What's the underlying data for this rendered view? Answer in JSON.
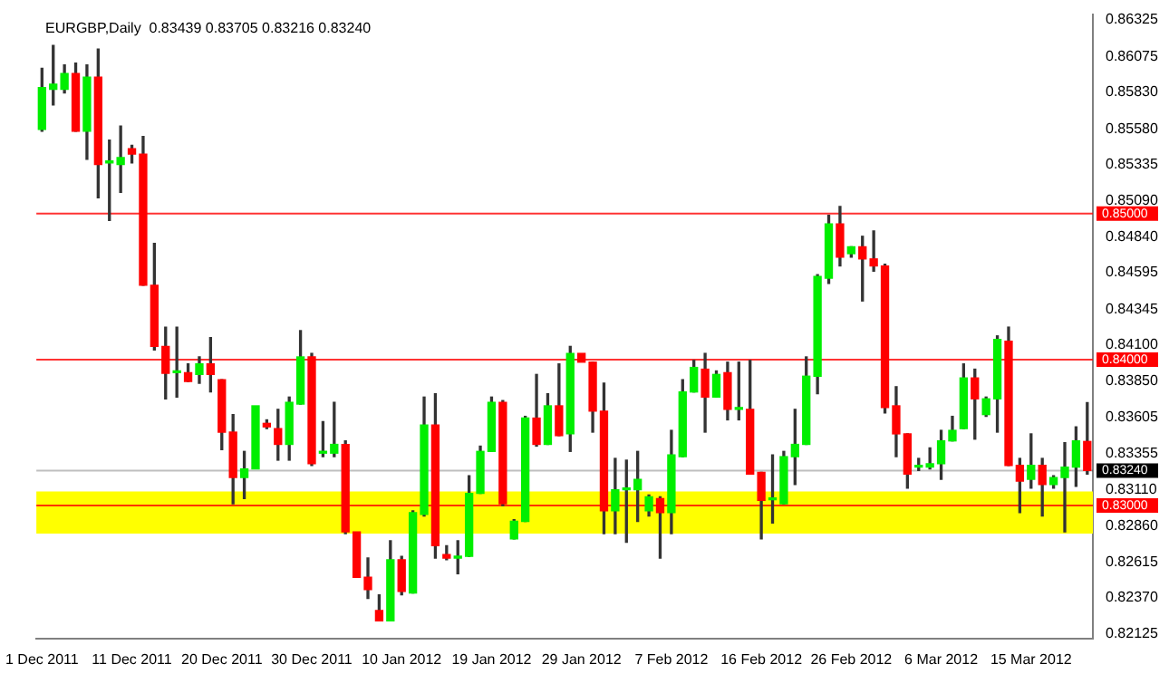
{
  "chart_data": {
    "type": "candlestick",
    "title": "EURGBP,Daily  0.83439 0.83705 0.83216 0.83240",
    "categories": [
      "1 Dec 2011",
      null,
      null,
      null,
      null,
      null,
      null,
      null,
      "11 Dec 2011",
      null,
      null,
      null,
      null,
      null,
      null,
      null,
      "20 Dec 2011",
      null,
      null,
      null,
      null,
      null,
      null,
      null,
      "30 Dec 2011",
      null,
      null,
      null,
      null,
      null,
      null,
      null,
      "10 Jan 2012",
      null,
      null,
      null,
      null,
      null,
      null,
      null,
      "19 Jan 2012",
      null,
      null,
      null,
      null,
      null,
      null,
      null,
      "29 Jan 2012",
      null,
      null,
      null,
      null,
      null,
      null,
      null,
      "7 Feb 2012",
      null,
      null,
      null,
      null,
      null,
      null,
      null,
      "16 Feb 2012",
      null,
      null,
      null,
      null,
      null,
      null,
      null,
      "26 Feb 2012",
      null,
      null,
      null,
      null,
      null,
      null,
      null,
      "6 Mar 2012",
      null,
      null,
      null,
      null,
      null,
      null,
      null,
      "15 Mar 2012",
      null,
      null,
      null,
      null,
      null
    ],
    "ohlc": [
      [
        0.85575,
        0.85994,
        0.85563,
        0.85862
      ],
      [
        0.8585,
        0.8615,
        0.85743,
        0.85886
      ],
      [
        0.8585,
        0.86018,
        0.85826,
        0.85958
      ],
      [
        0.85958,
        0.8603,
        0.85563,
        0.85563
      ],
      [
        0.85563,
        0.86018,
        0.85371,
        0.85934
      ],
      [
        0.85934,
        0.86126,
        0.85108,
        0.85335
      ],
      [
        0.85347,
        0.85503,
        0.84952,
        0.85357
      ],
      [
        0.85335,
        0.85599,
        0.85144,
        0.85383
      ],
      [
        0.85443,
        0.85467,
        0.85347,
        0.85407
      ],
      [
        0.85407,
        0.85527,
        0.84509,
        0.84509
      ],
      [
        0.84509,
        0.84796,
        0.84066,
        0.8409
      ],
      [
        0.8409,
        0.84222,
        0.83731,
        0.83906
      ],
      [
        0.8391,
        0.84222,
        0.83743,
        0.8392
      ],
      [
        0.8391,
        0.8397,
        0.8385,
        0.8385
      ],
      [
        0.83898,
        0.84018,
        0.83838,
        0.8397
      ],
      [
        0.8397,
        0.8415,
        0.83778,
        0.83898
      ],
      [
        0.83862,
        0.83862,
        0.83383,
        0.83503
      ],
      [
        0.83503,
        0.83623,
        0.83012,
        0.83192
      ],
      [
        0.83192,
        0.83371,
        0.83048,
        0.83251
      ],
      [
        0.83251,
        0.83683,
        0.83251,
        0.83683
      ],
      [
        0.83563,
        0.83587,
        0.83527,
        0.83539
      ],
      [
        0.83527,
        0.83659,
        0.83311,
        0.83419
      ],
      [
        0.83419,
        0.83743,
        0.83311,
        0.83707
      ],
      [
        0.83695,
        0.84198,
        0.83695,
        0.84018
      ],
      [
        0.84018,
        0.84042,
        0.83275,
        0.83287
      ],
      [
        0.83359,
        0.83575,
        0.83335,
        0.83369
      ],
      [
        0.83359,
        0.83707,
        0.83335,
        0.83419
      ],
      [
        0.83419,
        0.83443,
        0.82808,
        0.8282
      ],
      [
        0.8282,
        0.8282,
        0.82509,
        0.82509
      ],
      [
        0.82509,
        0.82641,
        0.82365,
        0.82425
      ],
      [
        0.82281,
        0.82389,
        0.8221,
        0.8221
      ],
      [
        0.8221,
        0.8276,
        0.8221,
        0.82629
      ],
      [
        0.82629,
        0.82653,
        0.82389,
        0.82413
      ],
      [
        0.82401,
        0.82964,
        0.82401,
        0.82952
      ],
      [
        0.8294,
        0.83743,
        0.82928,
        0.83551
      ],
      [
        0.83551,
        0.83766,
        0.82641,
        0.82725
      ],
      [
        0.82665,
        0.82725,
        0.82629,
        0.82641
      ],
      [
        0.82641,
        0.8276,
        0.82533,
        0.82653
      ],
      [
        0.82653,
        0.83204,
        0.82653,
        0.83084
      ],
      [
        0.83084,
        0.83407,
        0.83084,
        0.83371
      ],
      [
        0.83371,
        0.83743,
        0.83371,
        0.83707
      ],
      [
        0.83707,
        0.83719,
        0.83,
        0.83012
      ],
      [
        0.82772,
        0.82904,
        0.82772,
        0.82892
      ],
      [
        0.82892,
        0.83611,
        0.82892,
        0.83599
      ],
      [
        0.83599,
        0.83898,
        0.83407,
        0.83419
      ],
      [
        0.83419,
        0.83766,
        0.83419,
        0.83683
      ],
      [
        0.83683,
        0.8397,
        0.83479,
        0.83479
      ],
      [
        0.83491,
        0.8409,
        0.83371,
        0.84042
      ],
      [
        0.84042,
        0.84042,
        0.83982,
        0.83982
      ],
      [
        0.83982,
        0.83982,
        0.83503,
        0.83647
      ],
      [
        0.83647,
        0.83838,
        0.82808,
        0.82964
      ],
      [
        0.82964,
        0.83323,
        0.82808,
        0.83108
      ],
      [
        0.83108,
        0.83311,
        0.82749,
        0.83118
      ],
      [
        0.83108,
        0.83371,
        0.82892,
        0.8318
      ],
      [
        0.82964,
        0.83072,
        0.82928,
        0.8306
      ],
      [
        0.83048,
        0.8306,
        0.82641,
        0.82952
      ],
      [
        0.82952,
        0.83515,
        0.82808,
        0.83347
      ],
      [
        0.83335,
        0.83862,
        0.83335,
        0.83778
      ],
      [
        0.83778,
        0.83994,
        0.83778,
        0.83946
      ],
      [
        0.83934,
        0.84042,
        0.83503,
        0.83743
      ],
      [
        0.83743,
        0.83922,
        0.83743,
        0.83898
      ],
      [
        0.8391,
        0.83982,
        0.83587,
        0.83659
      ],
      [
        0.83659,
        0.83982,
        0.83587,
        0.83669
      ],
      [
        0.83659,
        0.83994,
        0.83216,
        0.83216
      ],
      [
        0.83228,
        0.83228,
        0.82772,
        0.83036
      ],
      [
        0.8304,
        0.83347,
        0.8288,
        0.8305
      ],
      [
        0.83012,
        0.83371,
        0.83012,
        0.83335
      ],
      [
        0.83335,
        0.83659,
        0.83144,
        0.83419
      ],
      [
        0.83419,
        0.84018,
        0.83419,
        0.83886
      ],
      [
        0.83886,
        0.84581,
        0.83766,
        0.84569
      ],
      [
        0.84557,
        0.84988,
        0.84521,
        0.84928
      ],
      [
        0.84928,
        0.85048,
        0.84641,
        0.84701
      ],
      [
        0.84725,
        0.84772,
        0.84701,
        0.84772
      ],
      [
        0.84772,
        0.84844,
        0.84401,
        0.84689
      ],
      [
        0.84689,
        0.8488,
        0.84605,
        0.84641
      ],
      [
        0.84641,
        0.84653,
        0.83635,
        0.83671
      ],
      [
        0.83683,
        0.83814,
        0.83335,
        0.83491
      ],
      [
        0.83491,
        0.83491,
        0.8312,
        0.83216
      ],
      [
        0.83263,
        0.83323,
        0.8324,
        0.83273
      ],
      [
        0.83263,
        0.83395,
        0.83251,
        0.83287
      ],
      [
        0.83287,
        0.83515,
        0.8318,
        0.83443
      ],
      [
        0.83443,
        0.83611,
        0.83443,
        0.83515
      ],
      [
        0.83527,
        0.8397,
        0.83527,
        0.83874
      ],
      [
        0.83874,
        0.83934,
        0.83455,
        0.83731
      ],
      [
        0.83623,
        0.83743,
        0.83611,
        0.83731
      ],
      [
        0.83731,
        0.84162,
        0.83503,
        0.84138
      ],
      [
        0.84126,
        0.84222,
        0.83275,
        0.83275
      ],
      [
        0.83275,
        0.83323,
        0.82952,
        0.83168
      ],
      [
        0.8318,
        0.83491,
        0.8312,
        0.83275
      ],
      [
        0.83275,
        0.83323,
        0.82928,
        0.83144
      ],
      [
        0.83144,
        0.83204,
        0.8312,
        0.83192
      ],
      [
        0.83192,
        0.83431,
        0.8282,
        0.83263
      ],
      [
        0.83263,
        0.83539,
        0.83132,
        0.83443
      ],
      [
        0.83439,
        0.83705,
        0.83216,
        0.8324
      ]
    ],
    "ylim": [
      0.8209,
      0.86365
    ],
    "yticks": [
      0.86325,
      0.86075,
      {
        "value": 0.8583,
        "label": "0.85830"
      },
      {
        "value": 0.8558,
        "label": "0.85580"
      },
      0.85335,
      {
        "value": 0.8509,
        "label": "0.85090"
      },
      {
        "value": 0.8484,
        "label": "0.84840"
      },
      0.84595,
      0.84345,
      {
        "value": 0.841,
        "label": "0.84100"
      },
      {
        "value": 0.8385,
        "label": "0.83850"
      },
      0.83605,
      0.83355,
      {
        "value": 0.8311,
        "label": "0.83110"
      },
      {
        "value": 0.8286,
        "label": "0.82860"
      },
      0.82615,
      {
        "value": 0.8237,
        "label": "0.82370"
      },
      0.82125
    ],
    "ref_lines": [
      {
        "axis": "y",
        "value": 0.85,
        "label": "0.85000",
        "color": "#ff0000"
      },
      {
        "axis": "y",
        "value": 0.84,
        "label": "0.84000",
        "color": "#ff0000"
      },
      {
        "axis": "y",
        "value": 0.83,
        "label": "0.83000",
        "color": "#ff0000"
      },
      {
        "axis": "y",
        "value": 0.8324,
        "label": "0.83240",
        "color": "#000000"
      }
    ],
    "bands": [
      {
        "axis": "y",
        "from": 0.82808,
        "to": 0.83096,
        "color": "#ffff00"
      }
    ],
    "grid": false,
    "legend": false
  }
}
